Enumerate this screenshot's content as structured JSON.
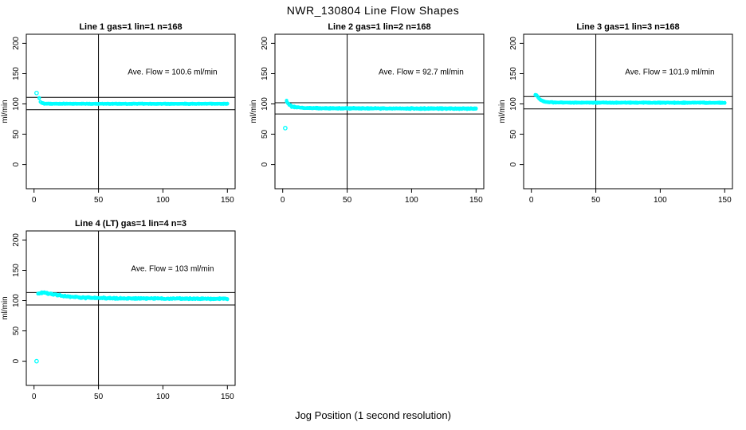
{
  "figure": {
    "title": "NWR_130804  Line Flow Shapes",
    "xlabel": "Jog Position (1 second resolution)",
    "background": "#ffffff",
    "text_color": "#000000",
    "point_color": "#00ffff",
    "ref_line_color": "#000000"
  },
  "chart_data": [
    {
      "type": "scatter",
      "title": "Line 1 gas=1 lin=1 n=168",
      "n": 168,
      "annotation": "Ave. Flow =  100.6  ml/min",
      "ave_flow_ml_min": 100.6,
      "ylabel": "ml/min",
      "x_ticks": [
        0,
        50,
        100,
        150
      ],
      "y_ticks": [
        0,
        50,
        100,
        150,
        200
      ],
      "xlim": [
        -6,
        156
      ],
      "ylim": [
        -40,
        215
      ],
      "vline_x": 50,
      "hlines_y": [
        110.7,
        90.5
      ],
      "series": {
        "name": "line-1-flow",
        "keypoints": [
          [
            4,
            109.5
          ],
          [
            5,
            103.5
          ],
          [
            6,
            101.5
          ],
          [
            8,
            100.6
          ],
          [
            12,
            100.3
          ],
          [
            150,
            100.2
          ]
        ],
        "x_start": 4,
        "x_end": 150,
        "x_step": 1,
        "passes": 4,
        "noise": 0.6
      },
      "outliers": [
        [
          2,
          118
        ]
      ]
    },
    {
      "type": "scatter",
      "title": "Line 2 gas=1 lin=2 n=168",
      "n": 168,
      "annotation": "Ave. Flow =  92.7  ml/min",
      "ave_flow_ml_min": 92.7,
      "ylabel": "ml/min",
      "x_ticks": [
        0,
        50,
        100,
        150
      ],
      "y_ticks": [
        0,
        50,
        100,
        150,
        200
      ],
      "xlim": [
        -6,
        156
      ],
      "ylim": [
        -40,
        215
      ],
      "vline_x": 50,
      "hlines_y": [
        102.0,
        83.4
      ],
      "series": {
        "name": "line-2-flow",
        "keypoints": [
          [
            3,
            104.5
          ],
          [
            4,
            101
          ],
          [
            5,
            98.5
          ],
          [
            7,
            96
          ],
          [
            10,
            94.5
          ],
          [
            16,
            93.4
          ],
          [
            30,
            92.8
          ],
          [
            80,
            92.5
          ],
          [
            150,
            92.3
          ]
        ],
        "x_start": 3,
        "x_end": 150,
        "x_step": 1,
        "passes": 4,
        "noise": 1.0
      },
      "outliers": [
        [
          2,
          60
        ]
      ]
    },
    {
      "type": "scatter",
      "title": "Line 3 gas=1 lin=3 n=168",
      "n": 168,
      "annotation": "Ave. Flow =  101.9  ml/min",
      "ave_flow_ml_min": 101.9,
      "ylabel": "ml/min",
      "x_ticks": [
        0,
        50,
        100,
        150
      ],
      "y_ticks": [
        0,
        50,
        100,
        150,
        200
      ],
      "xlim": [
        -6,
        156
      ],
      "ylim": [
        -40,
        215
      ],
      "vline_x": 50,
      "hlines_y": [
        112.1,
        91.7
      ],
      "series": {
        "name": "line-3-flow",
        "keypoints": [
          [
            3,
            115
          ],
          [
            4,
            114.5
          ],
          [
            5,
            111.5
          ],
          [
            6,
            108.5
          ],
          [
            8,
            105.5
          ],
          [
            10,
            103.8
          ],
          [
            14,
            102.6
          ],
          [
            25,
            102.1
          ],
          [
            150,
            101.9
          ]
        ],
        "x_start": 3,
        "x_end": 150,
        "x_step": 1,
        "passes": 4,
        "noise": 0.7
      },
      "outliers": []
    },
    {
      "type": "scatter",
      "title": "Line 4 (LT) gas=1 lin=4 n=3",
      "n": 3,
      "annotation": "Ave. Flow =  103  ml/min",
      "ave_flow_ml_min": 103,
      "ylabel": "ml/min",
      "x_ticks": [
        0,
        50,
        100,
        150
      ],
      "y_ticks": [
        0,
        50,
        100,
        150,
        200
      ],
      "xlim": [
        -6,
        156
      ],
      "ylim": [
        -40,
        215
      ],
      "vline_x": 50,
      "hlines_y": [
        113.3,
        92.7
      ],
      "series": {
        "name": "line-4-flow",
        "keypoints": [
          [
            3,
            111.5
          ],
          [
            5,
            113
          ],
          [
            8,
            113.2
          ],
          [
            12,
            111.5
          ],
          [
            17,
            109.5
          ],
          [
            23,
            107.5
          ],
          [
            30,
            106
          ],
          [
            40,
            104.8
          ],
          [
            55,
            104
          ],
          [
            80,
            103.4
          ],
          [
            120,
            103.1
          ],
          [
            150,
            103
          ]
        ],
        "x_start": 3,
        "x_end": 150,
        "x_step": 1,
        "passes": 3,
        "noise": 1.2
      },
      "outliers": [
        [
          2,
          0
        ]
      ]
    }
  ]
}
